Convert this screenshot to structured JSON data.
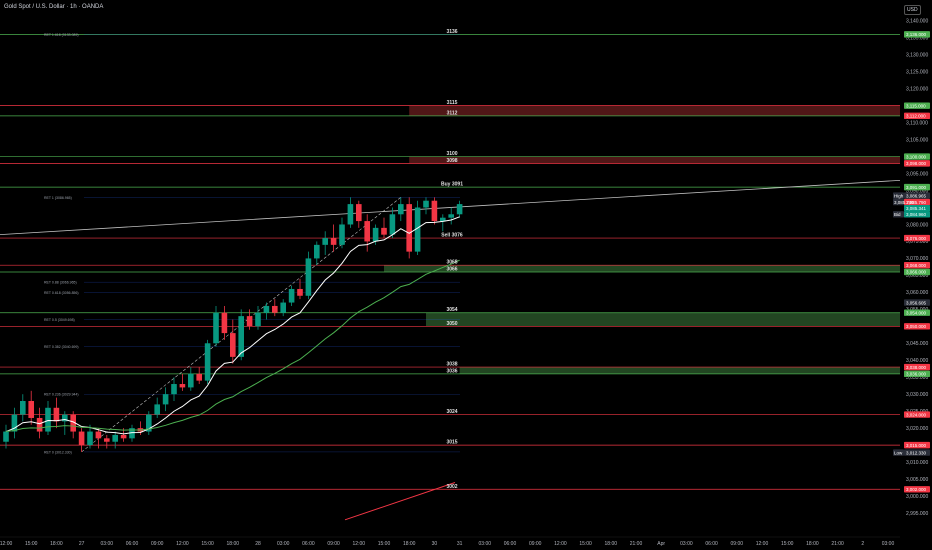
{
  "header": {
    "title": "Gold Spot / U.S. Dollar · 1h · OANDA",
    "currency": "USD"
  },
  "colors": {
    "background": "#000000",
    "up": "#089981",
    "down": "#f23645",
    "level_red": "#f23645",
    "level_green": "#4caf50",
    "zone_green": "#2e5d2e",
    "zone_red": "#6b1f1f",
    "ema_fast": "#ffffff",
    "ema_slow": "#4caf50"
  },
  "chart_data": {
    "type": "candlestick",
    "ylim": [
      2990,
      3142
    ],
    "y_ticks": [
      "3,140.000",
      "3,135.000",
      "3,130.000",
      "3,125.000",
      "3,120.000",
      "3,115.000",
      "3,110.000",
      "3,105.000",
      "3,100.000",
      "3,095.000",
      "3,090.000",
      "3,085.000",
      "3,080.000",
      "3,075.000",
      "3,070.000",
      "3,065.000",
      "3,060.000",
      "3,055.000",
      "3,050.000",
      "3,045.000",
      "3,040.000",
      "3,035.000",
      "3,030.000",
      "3,025.000",
      "3,020.000",
      "3,015.000",
      "3,010.000",
      "3,005.000",
      "3,000.000",
      "2,995.000"
    ],
    "y_tick_values": [
      3140,
      3135,
      3130,
      3125,
      3120,
      3115,
      3110,
      3105,
      3100,
      3095,
      3090,
      3085,
      3080,
      3075,
      3070,
      3065,
      3060,
      3055,
      3050,
      3045,
      3040,
      3035,
      3030,
      3025,
      3020,
      3015,
      3010,
      3005,
      3000,
      2995
    ],
    "x_ticks": [
      "09:00",
      "12:00",
      "15:00",
      "18:00",
      "27",
      "03:00",
      "06:00",
      "09:00",
      "12:00",
      "15:00",
      "18:00",
      "28",
      "03:00",
      "06:00",
      "09:00",
      "12:00",
      "15:00",
      "18:00",
      "30",
      "31",
      "03:00",
      "06:00",
      "09:00",
      "12:00",
      "15:00",
      "18:00",
      "21:00",
      "Apr",
      "03:00",
      "06:00",
      "09:00",
      "12:00",
      "15:00",
      "18:00",
      "21:00",
      "2",
      "03:00",
      "06:00",
      "09:00"
    ],
    "x_tick_index": [
      -3,
      0,
      3,
      6,
      9,
      12,
      15,
      18,
      21,
      24,
      27,
      30,
      33,
      36,
      39,
      42,
      45,
      48,
      51,
      54,
      57,
      60,
      63,
      66,
      69,
      72,
      75,
      78,
      81,
      84,
      87,
      90,
      93,
      96,
      99,
      102,
      105,
      108,
      111
    ],
    "candles": [
      [
        3016,
        3021,
        3014,
        3019
      ],
      [
        3019,
        3026,
        3017,
        3024
      ],
      [
        3024,
        3030,
        3022,
        3028
      ],
      [
        3028,
        3031,
        3021,
        3023
      ],
      [
        3023,
        3026,
        3017,
        3019
      ],
      [
        3019,
        3028,
        3018,
        3026
      ],
      [
        3026,
        3029,
        3020,
        3022
      ],
      [
        3022,
        3025,
        3018,
        3024
      ],
      [
        3024,
        3025,
        3017,
        3019
      ],
      [
        3019,
        3020,
        3013,
        3015
      ],
      [
        3015,
        3021,
        3014,
        3019
      ],
      [
        3019,
        3020,
        3014,
        3017
      ],
      [
        3017,
        3018,
        3014,
        3016
      ],
      [
        3016,
        3019,
        3014,
        3018
      ],
      [
        3018,
        3020,
        3016,
        3017
      ],
      [
        3017,
        3021,
        3016,
        3020
      ],
      [
        3020,
        3022,
        3018,
        3019
      ],
      [
        3019,
        3025,
        3018,
        3024
      ],
      [
        3024,
        3029,
        3023,
        3027
      ],
      [
        3027,
        3032,
        3025,
        3030
      ],
      [
        3030,
        3035,
        3028,
        3033
      ],
      [
        3033,
        3036,
        3031,
        3032
      ],
      [
        3032,
        3038,
        3031,
        3036
      ],
      [
        3036,
        3038,
        3033,
        3034
      ],
      [
        3034,
        3046,
        3033,
        3045
      ],
      [
        3045,
        3056,
        3044,
        3054
      ],
      [
        3054,
        3056,
        3046,
        3048
      ],
      [
        3048,
        3052,
        3039,
        3041
      ],
      [
        3041,
        3055,
        3040,
        3053
      ],
      [
        3053,
        3055,
        3049,
        3050
      ],
      [
        3050,
        3056,
        3049,
        3054
      ],
      [
        3054,
        3057,
        3052,
        3056
      ],
      [
        3056,
        3058,
        3053,
        3054
      ],
      [
        3054,
        3058,
        3053,
        3057
      ],
      [
        3057,
        3062,
        3056,
        3061
      ],
      [
        3061,
        3064,
        3058,
        3059
      ],
      [
        3059,
        3072,
        3058,
        3070
      ],
      [
        3070,
        3075,
        3068,
        3074
      ],
      [
        3074,
        3078,
        3071,
        3076
      ],
      [
        3076,
        3080,
        3072,
        3074
      ],
      [
        3074,
        3082,
        3073,
        3080
      ],
      [
        3080,
        3088,
        3079,
        3086
      ],
      [
        3086,
        3087,
        3079,
        3081
      ],
      [
        3081,
        3083,
        3072,
        3075
      ],
      [
        3075,
        3080,
        3074,
        3079
      ],
      [
        3079,
        3082,
        3076,
        3077
      ],
      [
        3077,
        3085,
        3076,
        3083
      ],
      [
        3083,
        3088,
        3081,
        3086
      ],
      [
        3086,
        3088,
        3070,
        3072
      ],
      [
        3072,
        3087,
        3071,
        3085
      ],
      [
        3085,
        3088,
        3083,
        3087
      ],
      [
        3087,
        3088,
        3080,
        3081
      ],
      [
        3081,
        3083,
        3078,
        3082
      ],
      [
        3082,
        3085,
        3080,
        3083
      ],
      [
        3083,
        3087,
        3082,
        3086
      ]
    ],
    "levels": [
      {
        "label": "3136",
        "price": 3136,
        "color": "#4caf50"
      },
      {
        "label": "3115",
        "price": 3115,
        "color": "#f23645"
      },
      {
        "label": "3112",
        "price": 3112,
        "color": "#4caf50"
      },
      {
        "label": "3100",
        "price": 3100,
        "color": "#4caf50"
      },
      {
        "label": "3098",
        "price": 3098,
        "color": "#f23645"
      },
      {
        "label": "Buy 3091",
        "price": 3091,
        "color": "#4caf50"
      },
      {
        "label": "Sell 3076",
        "price": 3076,
        "color": "#f23645"
      },
      {
        "label": "3068",
        "price": 3068,
        "color": "#f23645"
      },
      {
        "label": "3066",
        "price": 3066,
        "color": "#4caf50"
      },
      {
        "label": "3054",
        "price": 3054,
        "color": "#4caf50"
      },
      {
        "label": "3050",
        "price": 3050,
        "color": "#f23645"
      },
      {
        "label": "3038",
        "price": 3038,
        "color": "#f23645"
      },
      {
        "label": "3036",
        "price": 3036,
        "color": "#4caf50"
      },
      {
        "label": "3024",
        "price": 3024,
        "color": "#f23645"
      },
      {
        "label": "3015",
        "price": 3015,
        "color": "#f23645"
      },
      {
        "label": "3002",
        "price": 3002,
        "color": "#f23645"
      }
    ],
    "fib_levels": [
      {
        "label": "RET 1.618 (3133.089)",
        "price": 3136
      },
      {
        "label": "RET 1 (3086.965)",
        "price": 3088
      },
      {
        "label": "RET 0.88 (3066.965)",
        "price": 3063
      },
      {
        "label": "RET 0.618 (3056.856)",
        "price": 3060
      },
      {
        "label": "RET 0.5 (3049.698)",
        "price": 3052
      },
      {
        "label": "RET 0.382 (3040.699)",
        "price": 3044
      },
      {
        "label": "RET 0.236 (3029.944)",
        "price": 3030
      },
      {
        "label": "RET 0 (3012.330)",
        "price": 3013
      }
    ],
    "zones": [
      {
        "from": 3112,
        "to": 3115,
        "color": "#6b1f1f",
        "start": 48
      },
      {
        "from": 3098,
        "to": 3100,
        "color": "#6b1f1f",
        "start": 48
      },
      {
        "from": 3066,
        "to": 3068,
        "color": "#2e5d2e",
        "start": 45
      },
      {
        "from": 3050,
        "to": 3054,
        "color": "#2e5d2e",
        "start": 50
      },
      {
        "from": 3036,
        "to": 3038,
        "color": "#2e5d2e",
        "start": 54
      }
    ],
    "price_tags": [
      {
        "label": "3,136.000",
        "price": 3136,
        "color": "#4caf50"
      },
      {
        "label": "3,115.000",
        "price": 3115,
        "color": "#4caf50"
      },
      {
        "label": "3,112.000",
        "price": 3112,
        "color": "#f23645"
      },
      {
        "label": "3,100.000",
        "price": 3100,
        "color": "#4caf50"
      },
      {
        "label": "3,098.000",
        "price": 3098,
        "color": "#f23645"
      },
      {
        "label": "3,091.000",
        "price": 3091,
        "color": "#4caf50"
      },
      {
        "label": "3,086.965",
        "price": 3088.5,
        "color": "#2a2e39"
      },
      {
        "label": "3,085.790",
        "price": 3086.6,
        "color": "#f23645"
      },
      {
        "label": "3,085.341",
        "price": 3084.8,
        "color": "#089981"
      },
      {
        "label": "3,084.960",
        "price": 3083,
        "color": "#089981"
      },
      {
        "label": "3,076.000",
        "price": 3076,
        "color": "#f23645"
      },
      {
        "label": "3,068.000",
        "price": 3068,
        "color": "#f23645"
      },
      {
        "label": "3,066.000",
        "price": 3066,
        "color": "#4caf50"
      },
      {
        "label": "3,056.605",
        "price": 3057,
        "color": "#2a2e39"
      },
      {
        "label": "3,054.000",
        "price": 3054,
        "color": "#4caf50"
      },
      {
        "label": "3,050.000",
        "price": 3050,
        "color": "#f23645"
      },
      {
        "label": "3,038.000",
        "price": 3038,
        "color": "#f23645"
      },
      {
        "label": "3,036.000",
        "price": 3036,
        "color": "#4caf50"
      },
      {
        "label": "3,024.000",
        "price": 3024,
        "color": "#f23645"
      },
      {
        "label": "3,015.000",
        "price": 3015,
        "color": "#f23645"
      },
      {
        "label": "3,012.330",
        "price": 3012.8,
        "color": "#2a2e39"
      },
      {
        "label": "3,002.000",
        "price": 3002,
        "color": "#f23645"
      }
    ],
    "side_labels": [
      {
        "label": "High",
        "price": 3088.5
      },
      {
        "label": "3,085.790",
        "price": 3086.6
      },
      {
        "label": "Bid",
        "price": 3083
      },
      {
        "label": "Low",
        "price": 3012.8
      }
    ],
    "grid": false
  }
}
